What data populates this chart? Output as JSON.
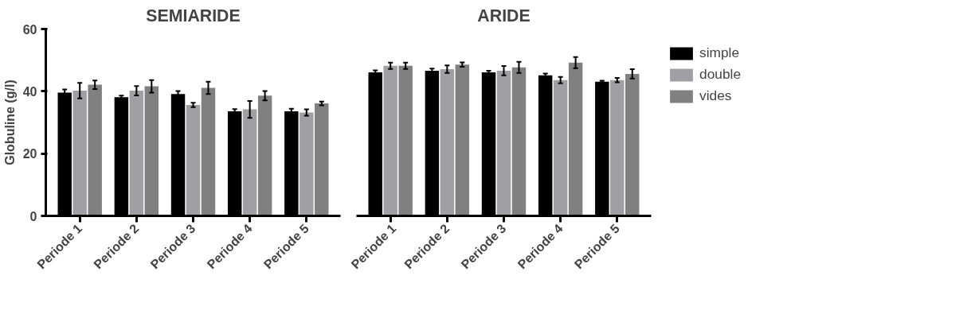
{
  "chart_data": [
    {
      "type": "bar",
      "title": "SEMIARIDE",
      "ylabel": "Globuline (g/l)",
      "categories": [
        "Periode 1",
        "Periode 2",
        "Periode 3",
        "Periode 4",
        "Periode 5"
      ],
      "ylim": [
        0,
        60
      ],
      "yticks": [
        0,
        20,
        40,
        60
      ],
      "grid": false,
      "legend": false,
      "series": [
        {
          "color": "#000000",
          "values": [
            39.6,
            38.1,
            39.1,
            33.6,
            33.6
          ],
          "errors": [
            1,
            0.5,
            1,
            0.7,
            0.8
          ]
        },
        {
          "color": "#a0a0a4",
          "values": [
            40.2,
            40.2,
            35.6,
            34.2,
            33.2
          ],
          "errors": [
            2.5,
            1.5,
            0.7,
            2.7,
            1
          ]
        },
        {
          "color": "#808080",
          "values": [
            42.1,
            41.6,
            41.1,
            38.6,
            36.1
          ],
          "errors": [
            1.4,
            2,
            2,
            1.5,
            0.6
          ]
        }
      ]
    },
    {
      "type": "bar",
      "title": "ARIDE",
      "categories": [
        "Periode 1",
        "Periode 2",
        "Periode 3",
        "Periode 4",
        "Periode 5"
      ],
      "ylim": [
        0,
        60
      ],
      "yticks": [
        0,
        20,
        40,
        60
      ],
      "tick_labels": "x",
      "grid": false,
      "legend": "right",
      "series": [
        {
          "name": "simple",
          "color": "#000000",
          "values": [
            46.1,
            46.6,
            46.1,
            45.1,
            43.1
          ],
          "errors": [
            0.6,
            0.7,
            0.5,
            0.6,
            0.3
          ]
        },
        {
          "name": "double",
          "color": "#a0a0a4",
          "values": [
            48.2,
            47.1,
            46.6,
            43.6,
            43.6
          ],
          "errors": [
            1,
            1.2,
            1.5,
            1,
            0.7
          ]
        },
        {
          "name": "vides",
          "color": "#808080",
          "values": [
            48.2,
            48.6,
            47.7,
            49.2,
            45.6
          ],
          "errors": [
            1,
            0.7,
            1.8,
            1.8,
            1.5
          ]
        }
      ]
    }
  ]
}
